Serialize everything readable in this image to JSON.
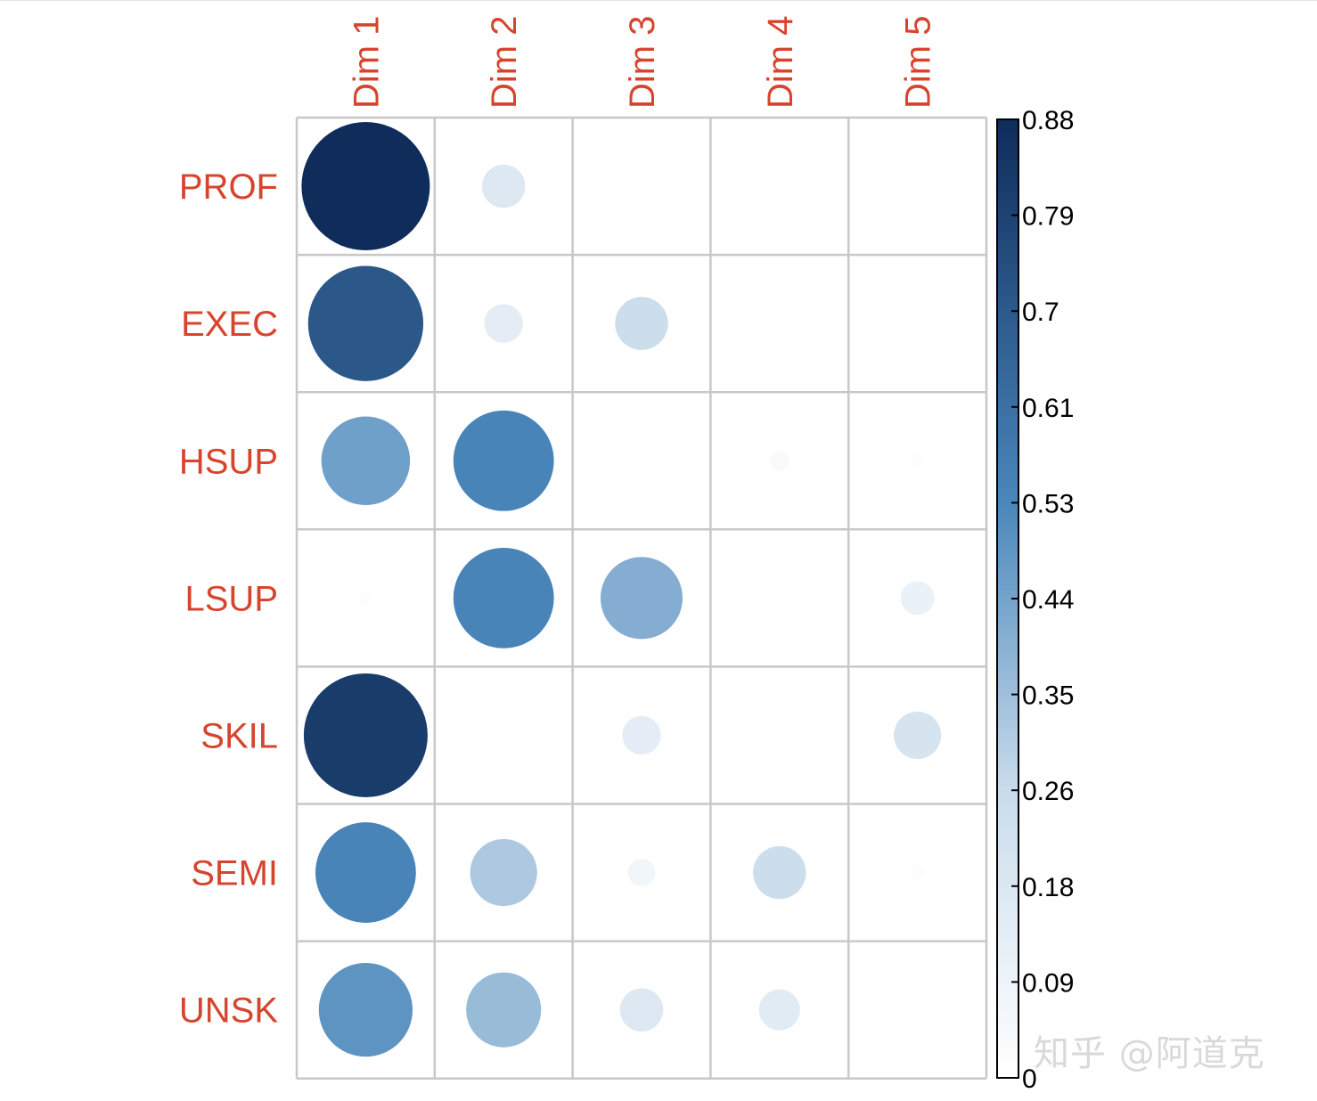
{
  "chart_data": {
    "type": "heatmap",
    "style": "correlation circle plot (circle size and color encode value)",
    "columns": [
      "Dim 1",
      "Dim 2",
      "Dim 3",
      "Dim 4",
      "Dim 5"
    ],
    "rows": [
      "PROF",
      "EXEC",
      "HSUP",
      "LSUP",
      "SKIL",
      "SEMI",
      "UNSK"
    ],
    "values": [
      [
        0.88,
        0.1,
        0.0,
        0.0,
        0.0
      ],
      [
        0.71,
        0.08,
        0.15,
        0.0,
        0.0
      ],
      [
        0.42,
        0.54,
        0.0,
        0.02,
        0.01
      ],
      [
        0.01,
        0.54,
        0.36,
        0.0,
        0.06
      ],
      [
        0.82,
        0.0,
        0.08,
        0.0,
        0.12
      ],
      [
        0.54,
        0.24,
        0.04,
        0.15,
        0.01
      ],
      [
        0.47,
        0.3,
        0.1,
        0.09,
        0.0
      ]
    ],
    "colorbar": {
      "ticks": [
        "0.88",
        "0.79",
        "0.7",
        "0.61",
        "0.53",
        "0.44",
        "0.35",
        "0.26",
        "0.18",
        "0.09",
        "0"
      ],
      "range": [
        0,
        0.88
      ],
      "color_low": "#ffffff",
      "color_mid": "#4a87bb",
      "color_high": "#0f2c5b"
    },
    "grid": true
  },
  "watermark": "知乎 @阿道克"
}
